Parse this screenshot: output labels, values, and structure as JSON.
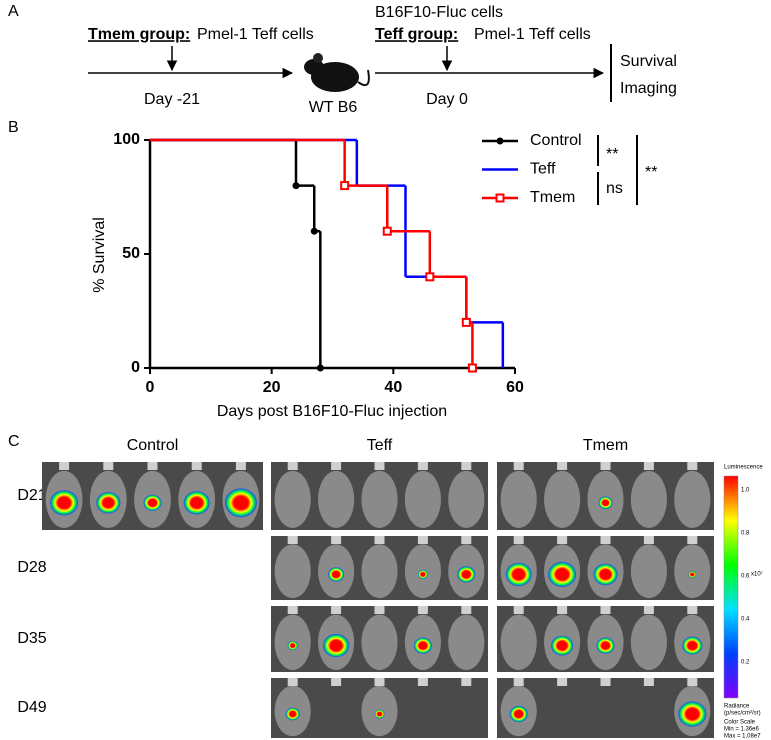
{
  "panel_a": {
    "label": "A",
    "tmem_group": "Tmem group:",
    "tmem_cells": "Pmel-1 Teff cells",
    "day_tmem": "Day -21",
    "mouse": "WT B6",
    "tumor": "B16F10-Fluc cells",
    "teff_group": "Teff group:",
    "teff_cells": "Pmel-1 Teff cells",
    "day_teff": "Day 0",
    "readouts": [
      "Survival",
      "Imaging"
    ]
  },
  "chart_data": {
    "type": "survival",
    "panel_label": "B",
    "x_label": "Days post B16F10-Fluc injection",
    "y_label": "% Survival",
    "xlim": [
      0,
      60
    ],
    "xticks": [
      0,
      20,
      40,
      60
    ],
    "ylim": [
      0,
      100
    ],
    "yticks": [
      0,
      50,
      100
    ],
    "legend": "upper right",
    "series": [
      {
        "name": "Control",
        "color": "#000000",
        "marker": "circle",
        "x": [
          0,
          24,
          27,
          28
        ],
        "values": [
          100,
          80,
          60,
          0
        ]
      },
      {
        "name": "Teff",
        "color": "#0000ff",
        "marker": "none",
        "x": [
          0,
          34,
          42,
          52,
          58
        ],
        "values": [
          100,
          80,
          40,
          20,
          0
        ]
      },
      {
        "name": "Tmem",
        "color": "#ff0000",
        "marker": "square",
        "x": [
          0,
          32,
          39,
          46,
          52,
          53
        ],
        "values": [
          100,
          80,
          60,
          40,
          20,
          0
        ]
      }
    ],
    "annotations": [
      "**",
      "ns",
      "**"
    ]
  },
  "panel_c": {
    "label": "C",
    "columns": [
      "Control",
      "Teff",
      "Tmem"
    ],
    "rows": [
      "D21",
      "D28",
      "D35",
      "D49"
    ],
    "colorbar": {
      "title": "Luminescence",
      "ticks": [
        "1.0",
        "0.8",
        "0.6",
        "0.4",
        "0.2"
      ],
      "unit": "x10⁷",
      "radiance": "Radiance",
      "radiance_unit": "(p/sec/cm²/sr)",
      "scale": "Color Scale",
      "min": "Min = 1.36e6",
      "max": "Max = 1.08e7"
    }
  }
}
